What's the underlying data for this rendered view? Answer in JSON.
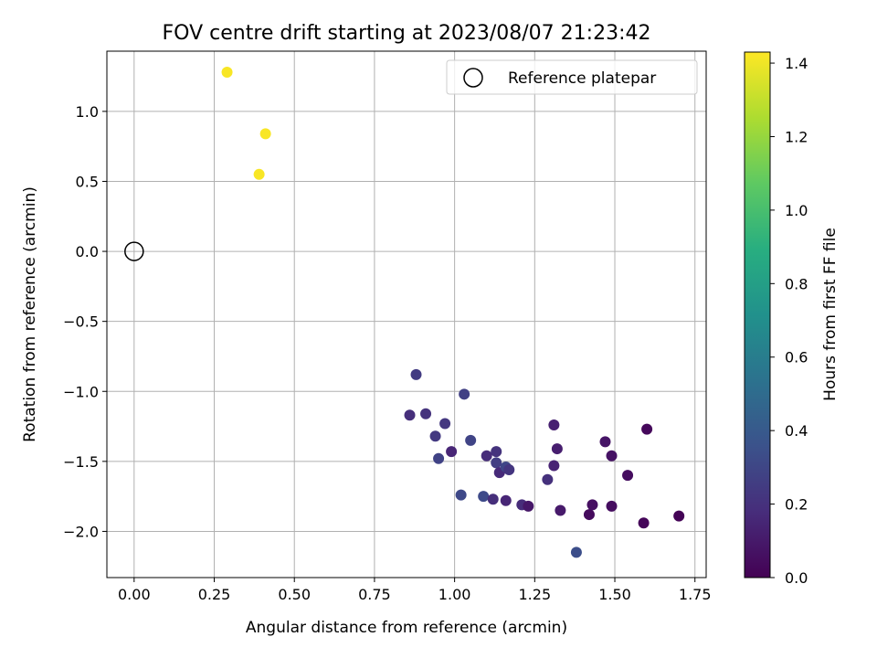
{
  "chart_data": {
    "type": "scatter",
    "title": "FOV centre drift starting at 2023/08/07 21:23:42",
    "xlabel": "Angular distance from reference (arcmin)",
    "ylabel": "Rotation from reference (arcmin)",
    "xlim": [
      -0.085,
      1.785
    ],
    "ylim": [
      -2.33,
      1.43
    ],
    "xticks": [
      0.0,
      0.25,
      0.5,
      0.75,
      1.0,
      1.25,
      1.5,
      1.75
    ],
    "xtick_labels": [
      "0.00",
      "0.25",
      "0.50",
      "0.75",
      "1.00",
      "1.25",
      "1.50",
      "1.75"
    ],
    "yticks": [
      1.0,
      0.5,
      0.0,
      -0.5,
      -1.0,
      -1.5,
      -2.0
    ],
    "ytick_labels": [
      "1.0",
      "0.5",
      "0.0",
      "−0.5",
      "−1.0",
      "−1.5",
      "−2.0"
    ],
    "grid": true,
    "legend": {
      "position": "top-right",
      "entries": [
        {
          "label": "Reference platepar",
          "marker": "open-circle"
        }
      ]
    },
    "reference_point": {
      "x": 0.0,
      "y": 0.0
    },
    "colorbar": {
      "label": "Hours from first FF file",
      "colormap": "viridis",
      "range": [
        0.0,
        1.43
      ],
      "ticks": [
        0.0,
        0.2,
        0.4,
        0.6,
        0.8,
        1.0,
        1.2,
        1.4
      ],
      "tick_labels": [
        "0.0",
        "0.2",
        "0.4",
        "0.6",
        "0.8",
        "1.0",
        "1.2",
        "1.4"
      ]
    },
    "series": [
      {
        "points": [
          {
            "x": 0.29,
            "y": 1.28,
            "hours": 1.42
          },
          {
            "x": 0.41,
            "y": 0.84,
            "hours": 1.42
          },
          {
            "x": 0.39,
            "y": 0.55,
            "hours": 1.42
          },
          {
            "x": 0.88,
            "y": -0.88,
            "hours": 0.25
          },
          {
            "x": 1.03,
            "y": -1.02,
            "hours": 0.27
          },
          {
            "x": 0.86,
            "y": -1.17,
            "hours": 0.19
          },
          {
            "x": 0.91,
            "y": -1.16,
            "hours": 0.21
          },
          {
            "x": 0.97,
            "y": -1.23,
            "hours": 0.23
          },
          {
            "x": 0.94,
            "y": -1.32,
            "hours": 0.24
          },
          {
            "x": 1.05,
            "y": -1.35,
            "hours": 0.29
          },
          {
            "x": 0.95,
            "y": -1.48,
            "hours": 0.28
          },
          {
            "x": 0.99,
            "y": -1.43,
            "hours": 0.15
          },
          {
            "x": 1.1,
            "y": -1.46,
            "hours": 0.18
          },
          {
            "x": 1.13,
            "y": -1.43,
            "hours": 0.21
          },
          {
            "x": 1.13,
            "y": -1.51,
            "hours": 0.26
          },
          {
            "x": 1.14,
            "y": -1.58,
            "hours": 0.17
          },
          {
            "x": 1.16,
            "y": -1.54,
            "hours": 0.3
          },
          {
            "x": 1.17,
            "y": -1.56,
            "hours": 0.22
          },
          {
            "x": 1.02,
            "y": -1.74,
            "hours": 0.31
          },
          {
            "x": 1.09,
            "y": -1.75,
            "hours": 0.32
          },
          {
            "x": 1.12,
            "y": -1.77,
            "hours": 0.19
          },
          {
            "x": 1.16,
            "y": -1.78,
            "hours": 0.15
          },
          {
            "x": 1.21,
            "y": -1.81,
            "hours": 0.18
          },
          {
            "x": 1.23,
            "y": -1.82,
            "hours": 0.09
          },
          {
            "x": 1.29,
            "y": -1.63,
            "hours": 0.2
          },
          {
            "x": 1.31,
            "y": -1.24,
            "hours": 0.13
          },
          {
            "x": 1.31,
            "y": -1.53,
            "hours": 0.14
          },
          {
            "x": 1.32,
            "y": -1.41,
            "hours": 0.12
          },
          {
            "x": 1.33,
            "y": -1.85,
            "hours": 0.1
          },
          {
            "x": 1.38,
            "y": -2.15,
            "hours": 0.34
          },
          {
            "x": 1.42,
            "y": -1.88,
            "hours": 0.04
          },
          {
            "x": 1.43,
            "y": -1.81,
            "hours": 0.06
          },
          {
            "x": 1.47,
            "y": -1.36,
            "hours": 0.08
          },
          {
            "x": 1.49,
            "y": -1.46,
            "hours": 0.07
          },
          {
            "x": 1.49,
            "y": -1.82,
            "hours": 0.05
          },
          {
            "x": 1.54,
            "y": -1.6,
            "hours": 0.05
          },
          {
            "x": 1.59,
            "y": -1.94,
            "hours": 0.02
          },
          {
            "x": 1.6,
            "y": -1.27,
            "hours": 0.03
          },
          {
            "x": 1.7,
            "y": -1.89,
            "hours": 0.01
          }
        ]
      }
    ]
  }
}
